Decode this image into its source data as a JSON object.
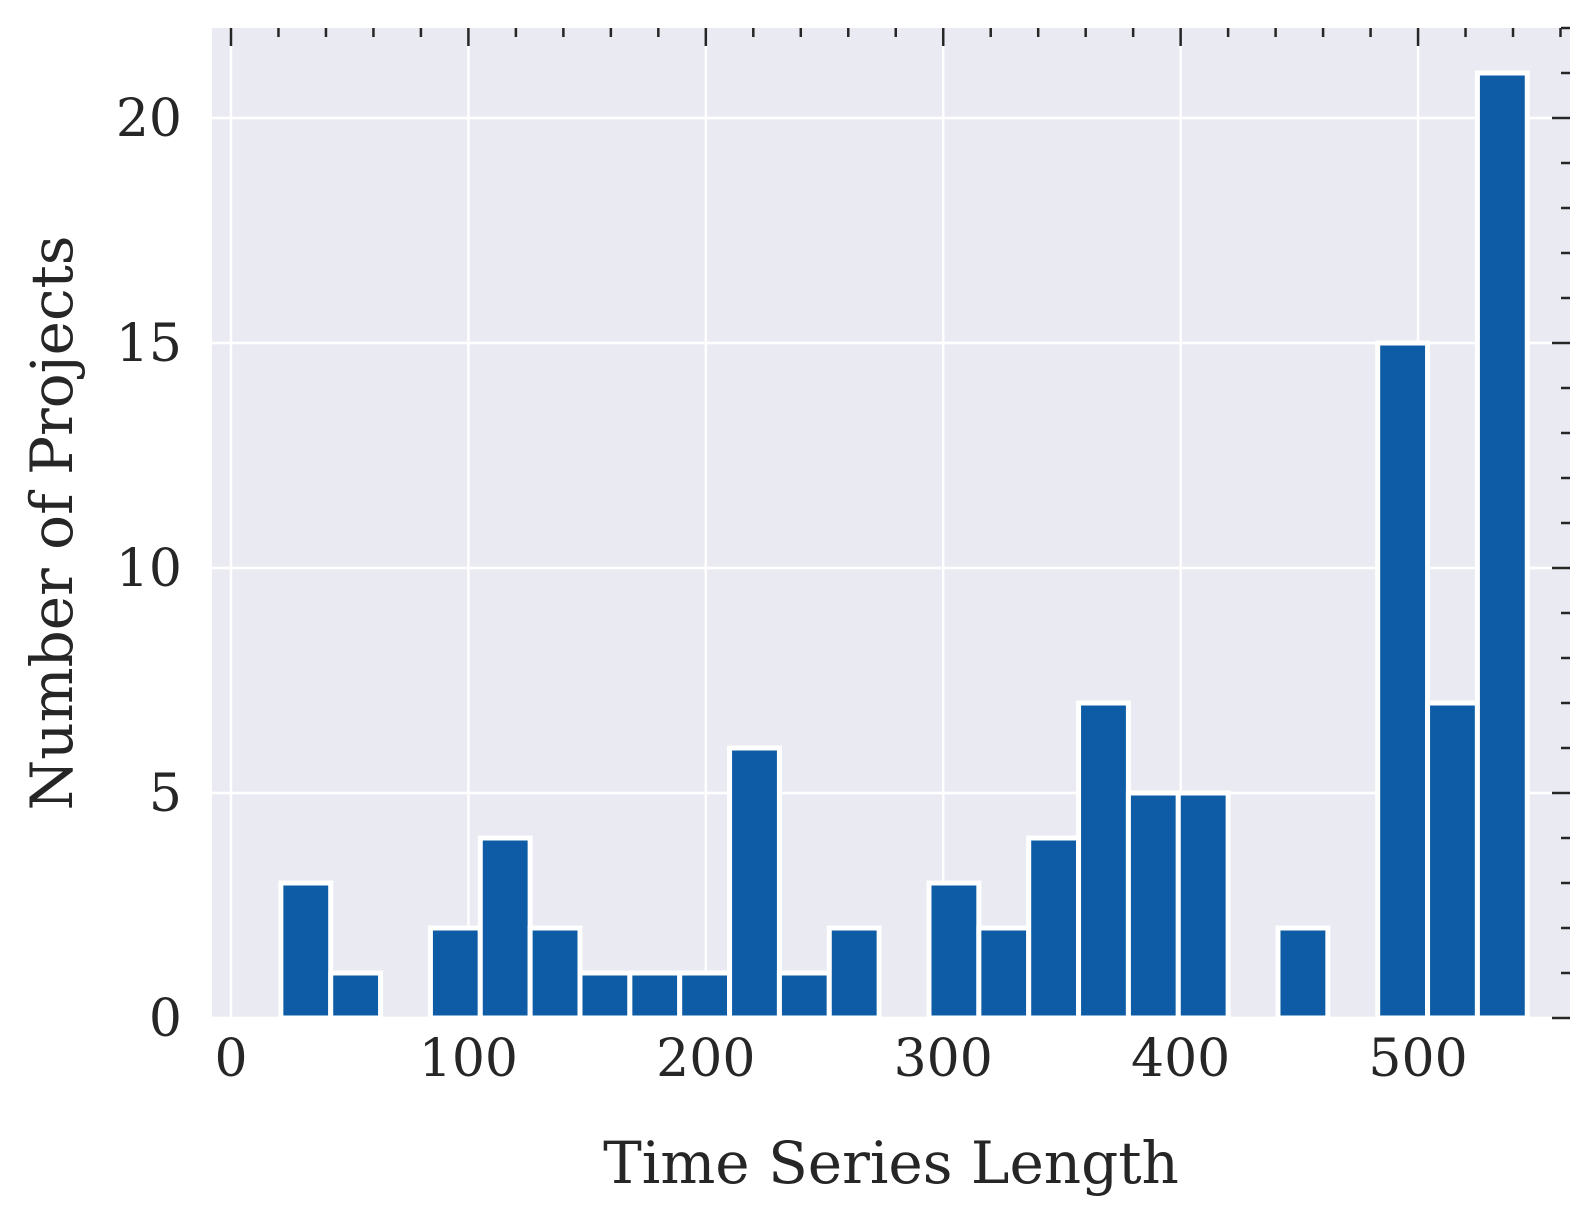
{
  "chart_data": {
    "type": "bar",
    "xlabel": "Time Series Length",
    "ylabel": "Number of Projects",
    "xlim": [
      -8,
      564
    ],
    "ylim": [
      0,
      22
    ],
    "x_ticks": [
      0,
      100,
      200,
      300,
      400,
      500
    ],
    "y_ticks": [
      0,
      5,
      10,
      15,
      20
    ],
    "grid": true,
    "bin_width": 21,
    "bar_color": "#0d5ca5",
    "background_color": "#eaeaf2",
    "bins": [
      {
        "x0": 0,
        "x1": 21,
        "count": 0
      },
      {
        "x0": 21,
        "x1": 42,
        "count": 3
      },
      {
        "x0": 42,
        "x1": 63,
        "count": 1
      },
      {
        "x0": 63,
        "x1": 84,
        "count": 0
      },
      {
        "x0": 84,
        "x1": 105,
        "count": 2
      },
      {
        "x0": 105,
        "x1": 126,
        "count": 4
      },
      {
        "x0": 126,
        "x1": 147,
        "count": 2
      },
      {
        "x0": 147,
        "x1": 168,
        "count": 1
      },
      {
        "x0": 168,
        "x1": 189,
        "count": 1
      },
      {
        "x0": 189,
        "x1": 210,
        "count": 1
      },
      {
        "x0": 210,
        "x1": 231,
        "count": 6
      },
      {
        "x0": 231,
        "x1": 252,
        "count": 1
      },
      {
        "x0": 252,
        "x1": 273,
        "count": 2
      },
      {
        "x0": 273,
        "x1": 294,
        "count": 0
      },
      {
        "x0": 294,
        "x1": 315,
        "count": 3
      },
      {
        "x0": 315,
        "x1": 336,
        "count": 2
      },
      {
        "x0": 336,
        "x1": 357,
        "count": 4
      },
      {
        "x0": 357,
        "x1": 378,
        "count": 7
      },
      {
        "x0": 378,
        "x1": 399,
        "count": 5
      },
      {
        "x0": 399,
        "x1": 420,
        "count": 5
      },
      {
        "x0": 420,
        "x1": 441,
        "count": 0
      },
      {
        "x0": 441,
        "x1": 462,
        "count": 2
      },
      {
        "x0": 462,
        "x1": 483,
        "count": 0
      },
      {
        "x0": 483,
        "x1": 504,
        "count": 15
      },
      {
        "x0": 504,
        "x1": 525,
        "count": 7
      },
      {
        "x0": 525,
        "x1": 546,
        "count": 21
      }
    ]
  }
}
